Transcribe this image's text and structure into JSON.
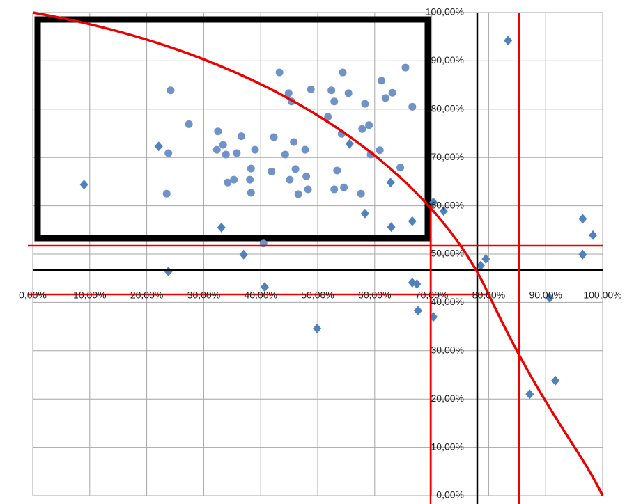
{
  "chart_data": {
    "type": "scatter",
    "xlim": [
      0,
      100
    ],
    "ylim": [
      0,
      100
    ],
    "xticks": [
      {
        "value": 0,
        "label": "0,00%"
      },
      {
        "value": 10,
        "label": "10,00%"
      },
      {
        "value": 20,
        "label": "20,00%"
      },
      {
        "value": 30,
        "label": "30,00%"
      },
      {
        "value": 40,
        "label": "40,00%"
      },
      {
        "value": 50,
        "label": "50,00%"
      },
      {
        "value": 60,
        "label": "60,00%"
      },
      {
        "value": 70,
        "label": "70,00%"
      },
      {
        "value": 80,
        "label": "80,00%"
      },
      {
        "value": 90,
        "label": "90,00%"
      },
      {
        "value": 100,
        "label": "100,00%"
      }
    ],
    "yticks": [
      {
        "value": 0,
        "label": "0,00%"
      },
      {
        "value": 10,
        "label": "10,00%"
      },
      {
        "value": 20,
        "label": "20,00%"
      },
      {
        "value": 30,
        "label": "30,00%"
      },
      {
        "value": 40,
        "label": "40,00%"
      },
      {
        "value": 50,
        "label": "50,00%"
      },
      {
        "value": 60,
        "label": "60,00%"
      },
      {
        "value": 70,
        "label": "70,00%"
      },
      {
        "value": 80,
        "label": "80,00%"
      },
      {
        "value": 90,
        "label": "90,00%"
      },
      {
        "value": 100,
        "label": "100,00%"
      }
    ],
    "grid": true,
    "series": [
      {
        "marker": "diamond",
        "color": "#4f81bd",
        "x": [
          9.0,
          22.1,
          23.8,
          33.1,
          37.0,
          40.7,
          49.9,
          55.6,
          58.3,
          62.8,
          62.9,
          66.6,
          66.6,
          67.4,
          67.6,
          70.3,
          70.3,
          72.1,
          78.6,
          79.5,
          83.4,
          87.2,
          90.7,
          91.7,
          96.5,
          98.3,
          96.5
        ],
        "values": [
          64.4,
          72.3,
          46.4,
          55.5,
          49.9,
          43.2,
          34.6,
          72.8,
          58.4,
          64.8,
          55.6,
          56.8,
          44.1,
          43.8,
          38.3,
          37.0,
          60.7,
          58.9,
          47.6,
          49.0,
          94.2,
          21.0,
          40.9,
          23.8,
          57.3,
          53.9,
          49.9
        ]
      },
      {
        "marker": "circle",
        "color": "#6f93c8",
        "x": [
          24.2,
          23.8,
          23.5,
          27.4,
          32.5,
          32.3,
          33.4,
          33.9,
          35.8,
          36.6,
          34.2,
          35.3,
          38.1,
          38.3,
          38.3,
          39.0,
          40.5,
          41.9,
          42.3,
          43.3,
          44.3,
          44.9,
          45.4,
          45.1,
          45.8,
          46.1,
          46.6,
          47.8,
          48.0,
          48.3,
          48.8,
          51.8,
          52.4,
          52.9,
          52.9,
          53.4,
          54.2,
          54.4,
          54.6,
          55.4,
          57.6,
          57.8,
          58.3,
          59.0,
          59.3,
          60.9,
          61.2,
          61.9,
          63.1,
          64.5,
          65.4,
          66.6
        ],
        "values": [
          83.9,
          70.9,
          62.5,
          76.9,
          75.4,
          71.6,
          72.6,
          70.6,
          70.9,
          74.4,
          64.8,
          65.4,
          65.4,
          67.7,
          62.7,
          71.6,
          52.2,
          67.1,
          74.2,
          87.6,
          70.6,
          83.3,
          81.6,
          65.4,
          73.2,
          67.6,
          62.4,
          71.6,
          66.1,
          63.4,
          84.1,
          78.4,
          83.9,
          81.6,
          63.4,
          67.3,
          74.9,
          87.6,
          63.8,
          83.3,
          62.5,
          75.9,
          81.1,
          76.7,
          70.6,
          71.5,
          85.9,
          82.3,
          83.4,
          67.9,
          88.6,
          80.5
        ]
      }
    ]
  }
}
